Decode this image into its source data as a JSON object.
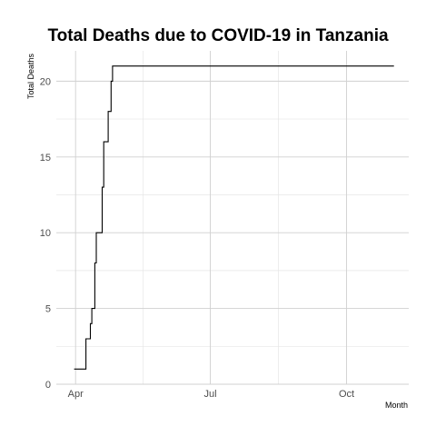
{
  "chart_data": {
    "type": "line",
    "title": "Total Deaths due to COVID-19 in Tanzania",
    "xlabel": "Month",
    "ylabel": "Total Deaths",
    "x_ticks": [
      {
        "label": "Apr",
        "date": "2020-04-01"
      },
      {
        "label": "Jul",
        "date": "2020-07-01"
      },
      {
        "label": "Oct",
        "date": "2020-10-01"
      }
    ],
    "y_ticks": [
      0,
      5,
      10,
      15,
      20
    ],
    "xlim": [
      "2020-03-19",
      "2020-11-12"
    ],
    "ylim": [
      0,
      22
    ],
    "grid": true,
    "series": [
      {
        "values": [
          {
            "x": "2020-03-31",
            "y": 1
          },
          {
            "x": "2020-04-07",
            "y": 1
          },
          {
            "x": "2020-04-08",
            "y": 3
          },
          {
            "x": "2020-04-10",
            "y": 3
          },
          {
            "x": "2020-04-11",
            "y": 4
          },
          {
            "x": "2020-04-12",
            "y": 5
          },
          {
            "x": "2020-04-13",
            "y": 5
          },
          {
            "x": "2020-04-14",
            "y": 8
          },
          {
            "x": "2020-04-15",
            "y": 10
          },
          {
            "x": "2020-04-18",
            "y": 10
          },
          {
            "x": "2020-04-19",
            "y": 13
          },
          {
            "x": "2020-04-20",
            "y": 16
          },
          {
            "x": "2020-04-22",
            "y": 16
          },
          {
            "x": "2020-04-23",
            "y": 18
          },
          {
            "x": "2020-04-24",
            "y": 18
          },
          {
            "x": "2020-04-25",
            "y": 20
          },
          {
            "x": "2020-04-26",
            "y": 21
          },
          {
            "x": "2020-11-02",
            "y": 21
          }
        ]
      }
    ]
  }
}
